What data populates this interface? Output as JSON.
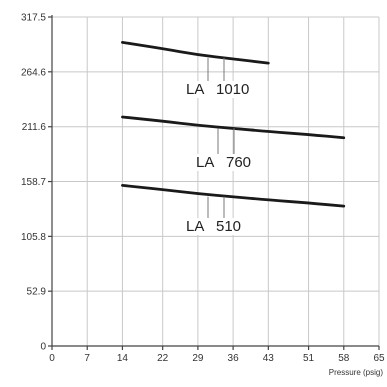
{
  "chart_data": {
    "type": "line",
    "xlabel": "Pressure (psig)",
    "ylabel": "",
    "x_ticks": [
      0,
      7,
      14,
      22,
      29,
      36,
      43,
      51,
      58,
      65
    ],
    "y_ticks": [
      0,
      52.9,
      105.8,
      158.7,
      211.6,
      264.6,
      317.5
    ],
    "xlim": [
      0,
      65
    ],
    "ylim": [
      0,
      317.5
    ],
    "grid": true,
    "series": [
      {
        "name": "LA 1010",
        "label_words": [
          "LA",
          "1010"
        ],
        "x": [
          14,
          22,
          29,
          36,
          43
        ],
        "y": [
          293,
          287,
          281,
          277,
          273
        ]
      },
      {
        "name": "LA 760",
        "label_words": [
          "LA",
          "760"
        ],
        "x": [
          14,
          22,
          29,
          36,
          43,
          51,
          58
        ],
        "y": [
          221,
          217,
          213,
          210,
          207,
          204,
          201
        ]
      },
      {
        "name": "LA 510",
        "label_words": [
          "LA",
          "510"
        ],
        "x": [
          14,
          22,
          29,
          36,
          43,
          51,
          58
        ],
        "y": [
          155,
          151,
          147,
          144,
          141,
          138,
          135
        ]
      }
    ]
  }
}
